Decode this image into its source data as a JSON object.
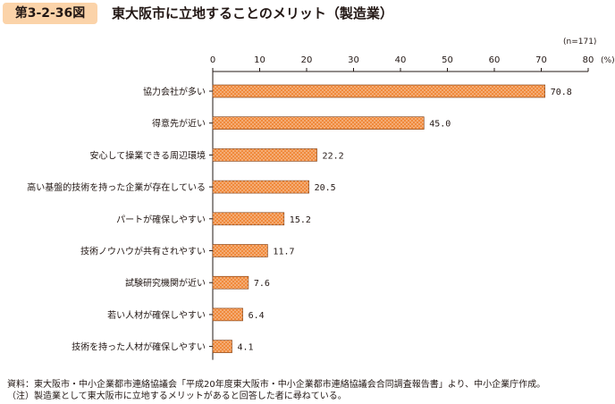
{
  "header": {
    "figure_number": "第3-2-36図",
    "title": "東大阪市に立地することのメリット（製造業）"
  },
  "chart_data": {
    "type": "bar",
    "orientation": "horizontal",
    "sample_size": "(n=171)",
    "unit": "(%)",
    "xlim": [
      0,
      80
    ],
    "xticks": [
      0,
      10,
      20,
      30,
      40,
      50,
      60,
      70,
      80
    ],
    "grid": false,
    "bar_color": "#f08a3c",
    "categories": [
      "協力会社が多い",
      "得意先が近い",
      "安心して操業できる周辺環境",
      "高い基盤的技術を持った企業が存在している",
      "パートが確保しやすい",
      "技術ノウハウが共有されやすい",
      "試験研究機関が近い",
      "若い人材が確保しやすい",
      "技術を持った人材が確保しやすい"
    ],
    "values": [
      70.8,
      45.0,
      22.2,
      20.5,
      15.2,
      11.7,
      7.6,
      6.4,
      4.1
    ],
    "value_labels": [
      "70.8",
      "45.0",
      "22.2",
      "20.5",
      "15.2",
      "11.7",
      "7.6",
      "6.4",
      "4.1"
    ]
  },
  "footnotes": {
    "source": "資料：東大阪市・中小企業都市連絡協議会「平成20年度東大阪市・中小企業都市連絡協議会合同調査報告書」より、中小企業庁作成。",
    "note": "（注）製造業として東大阪市に立地するメリットがあると回答した者に尋ねている。"
  }
}
